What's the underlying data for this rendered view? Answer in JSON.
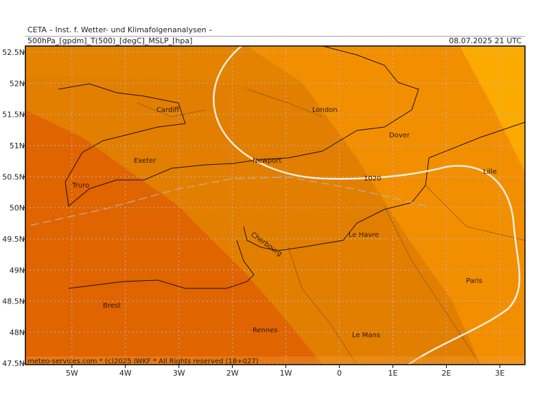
{
  "header": {
    "title": "CETA – Inst. f. Wetter- und Klimafolgenanalysen –",
    "fields": "500hPa_[gpdm]_T(500)_[degC]_MSLP_[hpa]",
    "datetime": "08.07.2025 21 UTC"
  },
  "map": {
    "lon_range": [
      -5.87,
      3.47
    ],
    "lat_range": [
      47.48,
      52.6
    ],
    "lon_ticks": [
      {
        "value": -5,
        "label": "5W"
      },
      {
        "value": -4,
        "label": "4W"
      },
      {
        "value": -3,
        "label": "3W"
      },
      {
        "value": -2,
        "label": "2W"
      },
      {
        "value": -1,
        "label": "1W"
      },
      0,
      {
        "value": 1,
        "label": "1E"
      },
      {
        "value": 2,
        "label": "2E"
      },
      {
        "value": 3,
        "label": "3E"
      }
    ],
    "lat_ticks": [
      {
        "value": 47.5,
        "label": "47.5N"
      },
      {
        "value": 48,
        "label": "48N"
      },
      {
        "value": 48.5,
        "label": "48.5N"
      },
      {
        "value": 49,
        "label": "49N"
      },
      {
        "value": 49.5,
        "label": "49.5N"
      },
      {
        "value": 50,
        "label": "50N"
      },
      {
        "value": 50.5,
        "label": "50.5N"
      },
      {
        "value": 51,
        "label": "51N"
      },
      {
        "value": 51.5,
        "label": "51.5N"
      },
      {
        "value": 52,
        "label": "52N"
      },
      {
        "value": 52.5,
        "label": "52.5N"
      }
    ],
    "isobar_label": "1020",
    "cities": [
      "Cardiff",
      "London",
      "Dover",
      "Exeter",
      "Newport",
      "Truro",
      "Lille",
      "Le Havre",
      "Cherbourg",
      "Paris",
      "Brest",
      "Rennes",
      "Le Mans"
    ]
  },
  "footer": {
    "credit": "meteo-services.com * (c)2025 IWKF * All Rights reserved (18+027)"
  }
}
